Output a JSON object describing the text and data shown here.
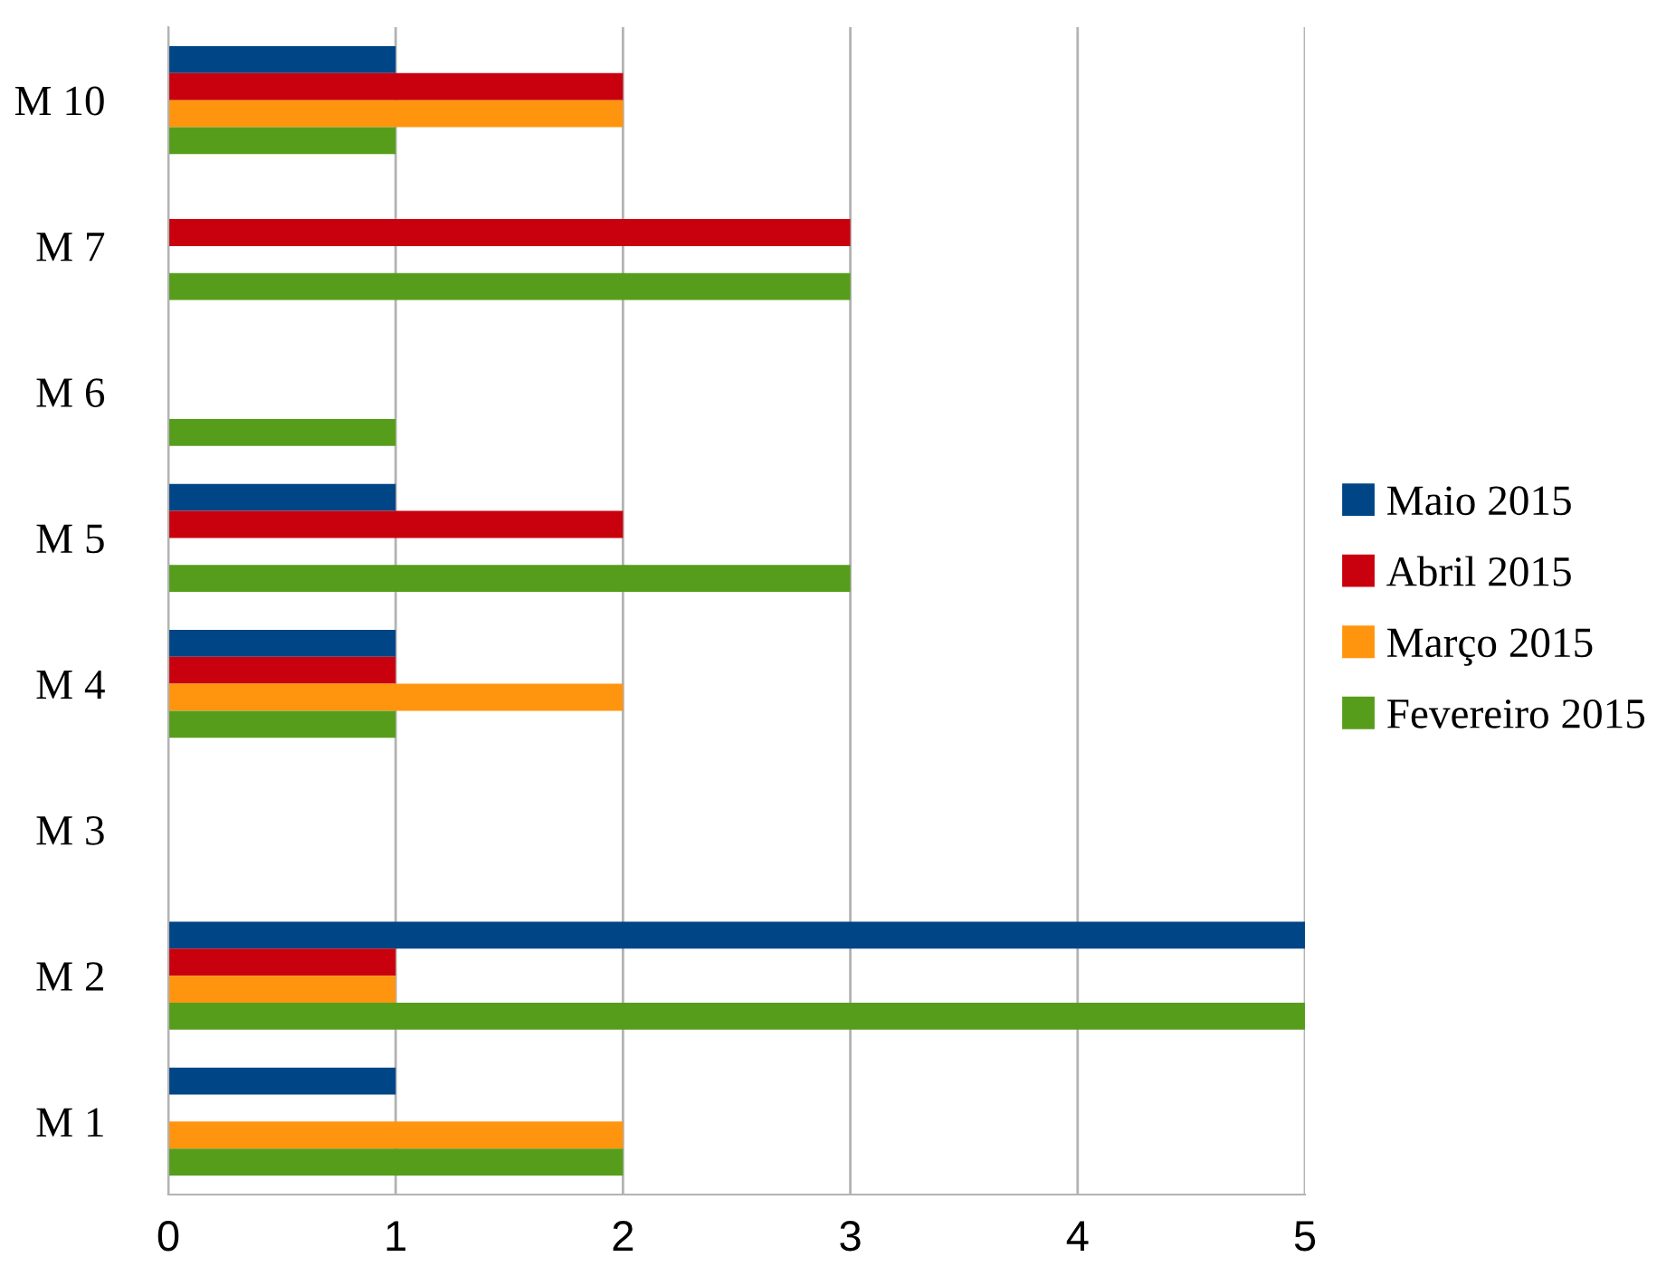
{
  "chart_data": {
    "type": "bar",
    "orientation": "horizontal",
    "categories": [
      "M 10",
      "M 7",
      "M 6",
      "M 5",
      "M 4",
      "M 3",
      "M 2",
      "M 1"
    ],
    "series": [
      {
        "name": "Maio 2015",
        "color": "#004586",
        "values": [
          1,
          0,
          0,
          1,
          1,
          0,
          5,
          1
        ]
      },
      {
        "name": "Abril 2015",
        "color": "#c9000d",
        "values": [
          2,
          3,
          0,
          2,
          1,
          0,
          1,
          0
        ]
      },
      {
        "name": "Março 2015",
        "color": "#ff950e",
        "values": [
          2,
          0,
          0,
          0,
          2,
          0,
          1,
          2
        ]
      },
      {
        "name": "Fevereiro 2015",
        "color": "#579d1c",
        "values": [
          1,
          3,
          1,
          3,
          1,
          0,
          5,
          2
        ]
      }
    ],
    "xlim": [
      0,
      5
    ],
    "xticks": [
      0,
      1,
      2,
      3,
      4,
      5
    ],
    "grid": "x",
    "legend": "right"
  }
}
